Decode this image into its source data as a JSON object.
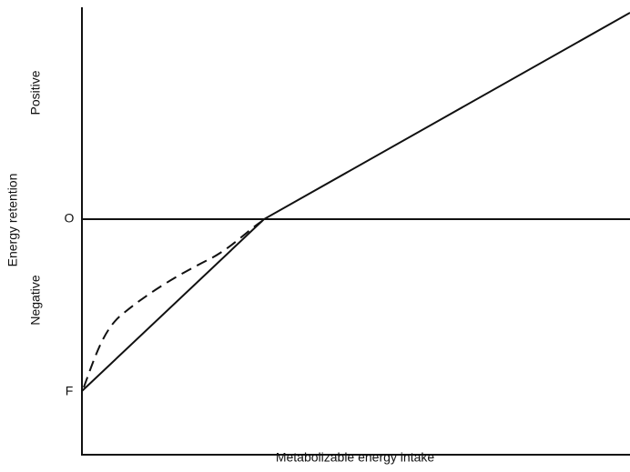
{
  "y_axis": {
    "title": "Energy retention",
    "upper_label": "Positive",
    "lower_label": "Negative",
    "zero_label": "O",
    "intercept_label": "F"
  },
  "x_axis": {
    "title": "Metabolizable energy intake"
  }
}
